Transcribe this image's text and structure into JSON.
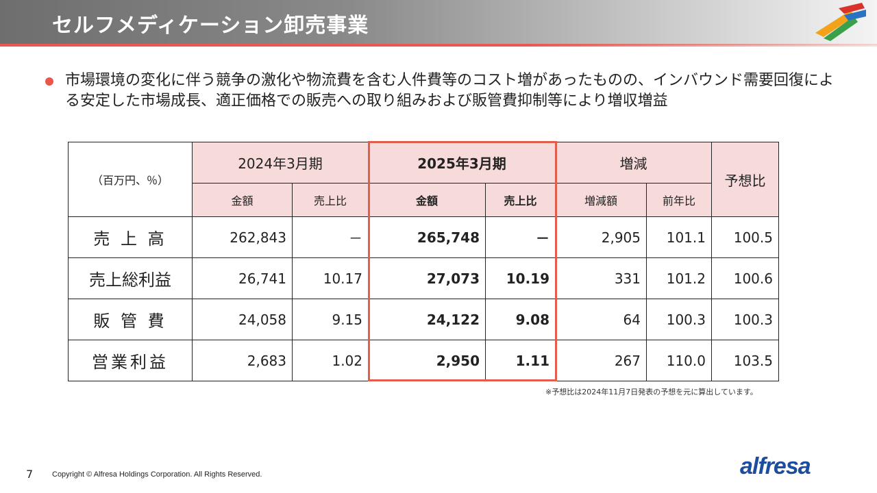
{
  "header": {
    "title": "セルフメディケーション卸売事業"
  },
  "bullet": {
    "text": "市場環境の変化に伴う競争の激化や物流費を含む人件費等のコスト増があったものの、インバウンド需要回復による安定した市場成長、適正価格での販売への取り組みおよび販管費抑制等により増収増益"
  },
  "table": {
    "unit_label": "（百万円、％）",
    "group_headers": [
      "2024年3月期",
      "2025年3月期",
      "増減",
      "予想比"
    ],
    "sub_headers": [
      "金額",
      "売上比",
      "金額",
      "売上比",
      "増減額",
      "前年比"
    ],
    "rows": [
      {
        "label": "売 上 高",
        "cells": [
          "262,843",
          "－",
          "265,748",
          "－",
          "2,905",
          "101.1",
          "100.5"
        ]
      },
      {
        "label": "売上総利益",
        "cells": [
          "26,741",
          "10.17",
          "27,073",
          "10.19",
          "331",
          "101.2",
          "100.6"
        ]
      },
      {
        "label": "販 管 費",
        "cells": [
          "24,058",
          "9.15",
          "24,122",
          "9.08",
          "64",
          "100.3",
          "100.3"
        ]
      },
      {
        "label": "営業利益",
        "cells": [
          "2,683",
          "1.02",
          "2,950",
          "1.11",
          "267",
          "110.0",
          "103.5"
        ]
      }
    ]
  },
  "footnote": "※予想比は2024年11月7日発表の予想を元に算出しています。",
  "footer": {
    "page_number": "7",
    "copyright": "Copyright © Alfresa Holdings Corporation. All Rights Reserved.",
    "brand": "alfresa"
  },
  "colors": {
    "accent": "#e35d4d",
    "header_fill": "#f7dada",
    "brand": "#1c4d9e"
  }
}
